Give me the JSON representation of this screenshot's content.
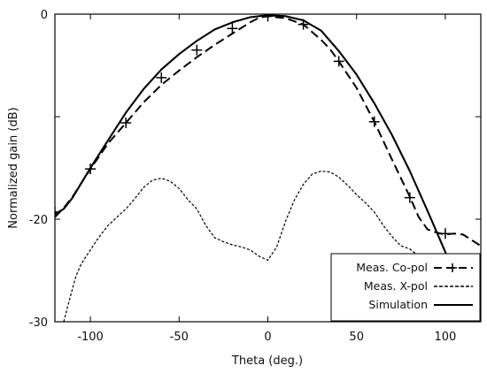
{
  "chart_data": {
    "type": "line",
    "title": "",
    "xlabel": "Theta (deg.)",
    "ylabel": "Normalized gain (dB)",
    "xlim": [
      -120,
      120
    ],
    "ylim": [
      -30,
      0
    ],
    "x_ticks": [
      -100,
      -50,
      0,
      50,
      100
    ],
    "x_tick_labels": [
      "-100",
      "-50",
      "0",
      "50",
      "100"
    ],
    "y_ticks": [
      -30,
      -20,
      -10,
      0
    ],
    "y_tick_labels": [
      "-30",
      "-20",
      "",
      "0"
    ],
    "grid": false,
    "legend_position": "bottom-right",
    "series": [
      {
        "name": "Meas. Co-pol",
        "style": "dashed-with-plus-markers",
        "color": "#000000",
        "x": [
          -120,
          -115,
          -110,
          -100,
          -90,
          -80,
          -70,
          -60,
          -50,
          -40,
          -30,
          -20,
          -10,
          -5,
          0,
          5,
          10,
          20,
          30,
          35,
          40,
          50,
          60,
          70,
          80,
          85,
          90,
          95,
          100,
          105,
          110,
          120
        ],
        "y": [
          -19.8,
          -18.9,
          -17.8,
          -15.1,
          -12.6,
          -10.6,
          -8.6,
          -6.9,
          -5.5,
          -4.2,
          -3.0,
          -1.9,
          -0.8,
          -0.35,
          -0.2,
          -0.3,
          -0.4,
          -1.0,
          -2.5,
          -3.4,
          -4.6,
          -7.2,
          -10.5,
          -14.2,
          -17.8,
          -19.8,
          -21.0,
          -21.3,
          -21.5,
          -21.4,
          -21.5,
          -22.6
        ],
        "marker_x": [
          -120,
          -100,
          -80,
          -60,
          -40,
          -20,
          0,
          20,
          40,
          60,
          80,
          100
        ],
        "marker_y": [
          -19.3,
          -15.1,
          -10.6,
          -6.2,
          -3.5,
          -1.4,
          -0.2,
          -1.0,
          -4.6,
          -10.5,
          -17.9,
          -21.4
        ]
      },
      {
        "name": "Meas. X-pol",
        "style": "dotted",
        "color": "#000000",
        "x": [
          -115,
          -112,
          -108,
          -105,
          -100,
          -95,
          -90,
          -85,
          -80,
          -75,
          -70,
          -65,
          -60,
          -55,
          -50,
          -45,
          -40,
          -35,
          -30,
          -25,
          -20,
          -15,
          -10,
          -5,
          0,
          5,
          10,
          15,
          20,
          25,
          30,
          35,
          40,
          45,
          50,
          55,
          60,
          65,
          70,
          75,
          80,
          85
        ],
        "y": [
          -30.0,
          -28.0,
          -25.5,
          -24.3,
          -23.0,
          -21.7,
          -20.6,
          -19.8,
          -19.0,
          -18.0,
          -16.9,
          -16.2,
          -16.0,
          -16.3,
          -17.0,
          -18.1,
          -19.0,
          -20.6,
          -21.8,
          -22.2,
          -22.5,
          -22.7,
          -23.0,
          -23.6,
          -24.0,
          -22.7,
          -20.2,
          -18.1,
          -16.6,
          -15.6,
          -15.3,
          -15.4,
          -15.9,
          -16.7,
          -17.6,
          -18.4,
          -19.3,
          -20.6,
          -21.7,
          -22.6,
          -22.9,
          -23.6
        ]
      },
      {
        "name": "Simulation",
        "style": "solid",
        "color": "#000000",
        "x": [
          -120,
          -115,
          -110,
          -100,
          -90,
          -80,
          -70,
          -60,
          -50,
          -40,
          -30,
          -20,
          -10,
          0,
          10,
          20,
          30,
          40,
          50,
          60,
          70,
          80,
          90,
          100,
          105,
          110
        ],
        "y": [
          -19.5,
          -19.0,
          -17.9,
          -15.0,
          -12.3,
          -9.6,
          -7.3,
          -5.4,
          -3.9,
          -2.6,
          -1.5,
          -0.8,
          -0.3,
          -0.1,
          -0.2,
          -0.6,
          -1.6,
          -3.6,
          -5.9,
          -8.7,
          -11.8,
          -15.3,
          -19.2,
          -23.2,
          -25.4,
          -27.7
        ]
      }
    ]
  }
}
